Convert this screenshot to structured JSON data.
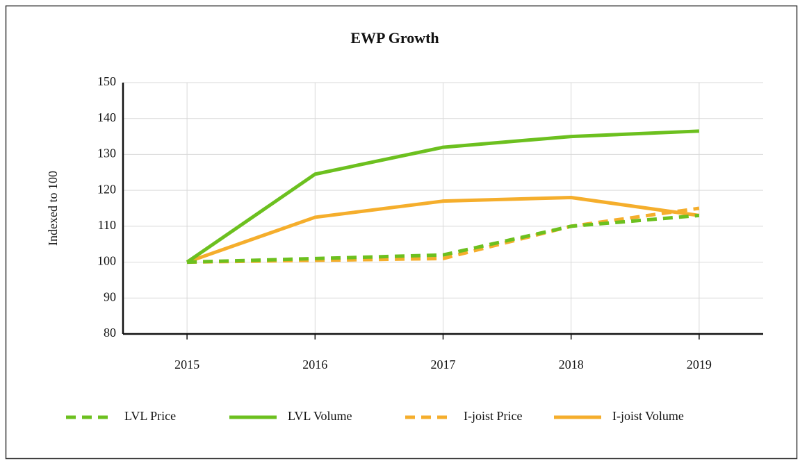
{
  "chart_data": {
    "type": "line",
    "title": "EWP Growth",
    "y_label": "Indexed to 100",
    "categories": [
      "2015",
      "2016",
      "2017",
      "2018",
      "2019"
    ],
    "series": [
      {
        "name": "LVL Price",
        "color": "#6cc01f",
        "dashed": true,
        "values": [
          100,
          101,
          102,
          110,
          113
        ]
      },
      {
        "name": "LVL Volume",
        "color": "#6cc01f",
        "dashed": false,
        "values": [
          100,
          124.5,
          132,
          135,
          136.5
        ]
      },
      {
        "name": "I-joist Price",
        "color": "#f5ae2c",
        "dashed": true,
        "values": [
          100,
          100.5,
          101,
          110,
          115
        ]
      },
      {
        "name": "I-joist Volume",
        "color": "#f5ae2c",
        "dashed": false,
        "values": [
          100,
          112.5,
          117,
          118,
          113
        ]
      }
    ],
    "ylim": [
      80,
      150
    ],
    "yticks": [
      80,
      90,
      100,
      110,
      120,
      130,
      140,
      150
    ],
    "grid": true,
    "legend": "bottom"
  }
}
